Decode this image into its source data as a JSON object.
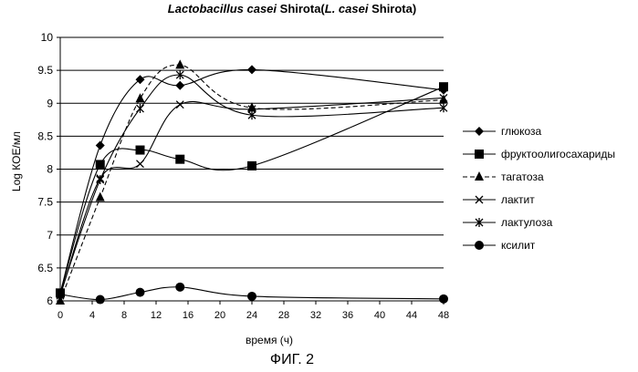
{
  "chart_data": {
    "type": "line",
    "title": {
      "part1_italic": "Lactobacillus casei",
      "part2": " Shirota(",
      "part3_italic": "L. casei",
      "part4": " Shirota)"
    },
    "xlabel": "время (ч)",
    "ylabel": "Log КОЕ/мл",
    "xlim": [
      0,
      48
    ],
    "ylim": [
      6,
      10
    ],
    "x_ticks": [
      "0",
      "4",
      "8",
      "12",
      "16",
      "20",
      "24",
      "28",
      "32",
      "36",
      "40",
      "44",
      "48"
    ],
    "y_ticks": [
      "6",
      "6.5",
      "7",
      "7.5",
      "8",
      "8.5",
      "9",
      "9.5",
      "10"
    ],
    "grid": "horizontal",
    "legend_position": "right",
    "series": [
      {
        "name": "глюкоза",
        "marker": "diamond",
        "dash": "solid",
        "x": [
          0,
          5,
          10,
          15,
          24,
          48
        ],
        "y": [
          6.12,
          8.36,
          9.36,
          9.27,
          9.51,
          9.2
        ]
      },
      {
        "name": "фруктоолигосахариды",
        "marker": "square",
        "dash": "solid",
        "x": [
          0,
          5,
          10,
          15,
          24,
          48
        ],
        "y": [
          6.12,
          8.07,
          8.29,
          8.15,
          8.05,
          9.25
        ]
      },
      {
        "name": "тагатоза",
        "marker": "triangle",
        "dash": "dashed",
        "x": [
          0,
          5,
          10,
          15,
          24,
          48
        ],
        "y": [
          6.0,
          7.57,
          9.07,
          9.58,
          8.93,
          9.05
        ]
      },
      {
        "name": "лактит",
        "marker": "x",
        "dash": "solid",
        "x": [
          0,
          5,
          10,
          15,
          24,
          48
        ],
        "y": [
          6.08,
          7.86,
          8.08,
          8.98,
          8.91,
          9.08
        ]
      },
      {
        "name": "лактулоза",
        "marker": "asterisk",
        "dash": "solid",
        "x": [
          0,
          5,
          10,
          15,
          24,
          48
        ],
        "y": [
          6.1,
          7.84,
          8.92,
          9.43,
          8.82,
          8.93
        ]
      },
      {
        "name": "ксилит",
        "marker": "circle",
        "dash": "solid",
        "x": [
          0,
          5,
          10,
          15,
          24,
          48
        ],
        "y": [
          6.1,
          6.02,
          6.13,
          6.21,
          6.07,
          6.03
        ]
      }
    ]
  },
  "figure_caption": "ФИГ. 2"
}
